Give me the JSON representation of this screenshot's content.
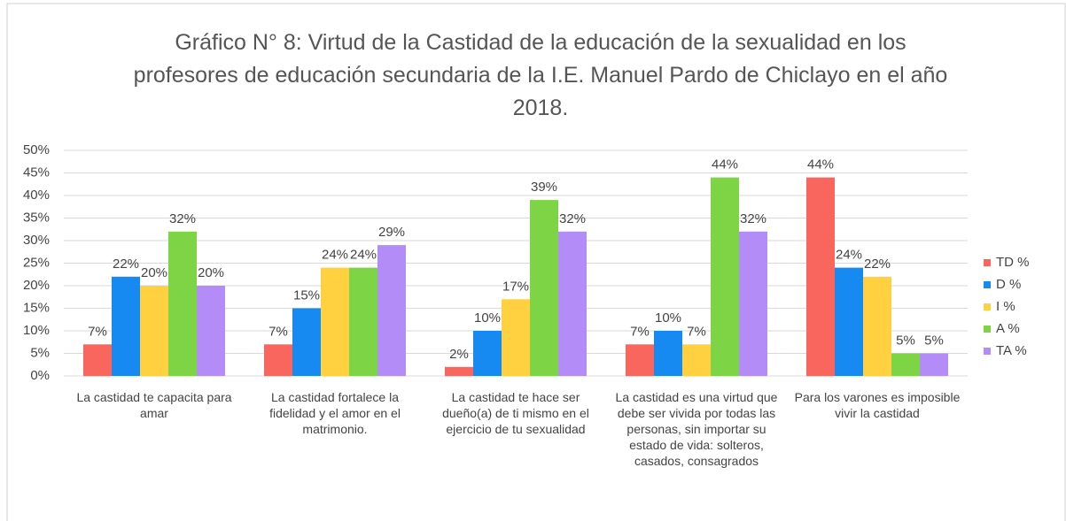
{
  "chart_data": {
    "type": "bar",
    "title": "Gráfico N° 8: Virtud de la Castidad de la educación de la sexualidad en los profesores de educación secundaria de la I.E. Manuel Pardo de Chiclayo en el año 2018.",
    "categories": [
      "La castidad te capacita para amar",
      "La castidad fortalece la fidelidad y el amor en el matrimonio.",
      "La castidad te hace ser dueño(a) de ti mismo en el ejercicio de tu sexualidad",
      "La castidad es una virtud que debe ser vivida por todas las personas, sin importar su estado de vida: solteros, casados, consagrados",
      "Para los varones es imposible vivir la castidad"
    ],
    "series": [
      {
        "name": "TD %",
        "color": "#f8665e",
        "values": [
          7,
          7,
          2,
          7,
          44
        ],
        "value_labels": [
          "7%",
          "7%",
          "2%",
          "7%",
          "44%"
        ]
      },
      {
        "name": "D %",
        "color": "#168af0",
        "values": [
          22,
          15,
          10,
          10,
          24
        ],
        "value_labels": [
          "22%",
          "15%",
          "10%",
          "10%",
          "24%"
        ]
      },
      {
        "name": "I %",
        "color": "#ffd141",
        "values": [
          20,
          24,
          17,
          7,
          22
        ],
        "value_labels": [
          "20%",
          "24%",
          "17%",
          "7%",
          "22%"
        ]
      },
      {
        "name": "A %",
        "color": "#7dd444",
        "values": [
          32,
          24,
          39,
          44,
          5
        ],
        "value_labels": [
          "32%",
          "24%",
          "39%",
          "44%",
          "5%"
        ]
      },
      {
        "name": "TA %",
        "color": "#b38cf7",
        "values": [
          20,
          29,
          32,
          32,
          5
        ],
        "value_labels": [
          "20%",
          "29%",
          "32%",
          "32%",
          "5%"
        ]
      }
    ],
    "ylim": [
      0,
      50
    ],
    "yticks": [
      {
        "value": 0,
        "label": "0%"
      },
      {
        "value": 5,
        "label": "5%"
      },
      {
        "value": 10,
        "label": "10%"
      },
      {
        "value": 15,
        "label": "15%"
      },
      {
        "value": 20,
        "label": "20%"
      },
      {
        "value": 25,
        "label": "25%"
      },
      {
        "value": 30,
        "label": "30%"
      },
      {
        "value": 35,
        "label": "35%"
      },
      {
        "value": 40,
        "label": "40%"
      },
      {
        "value": 45,
        "label": "45%"
      },
      {
        "value": 50,
        "label": "50%"
      }
    ],
    "grid": true,
    "legend": "right"
  }
}
